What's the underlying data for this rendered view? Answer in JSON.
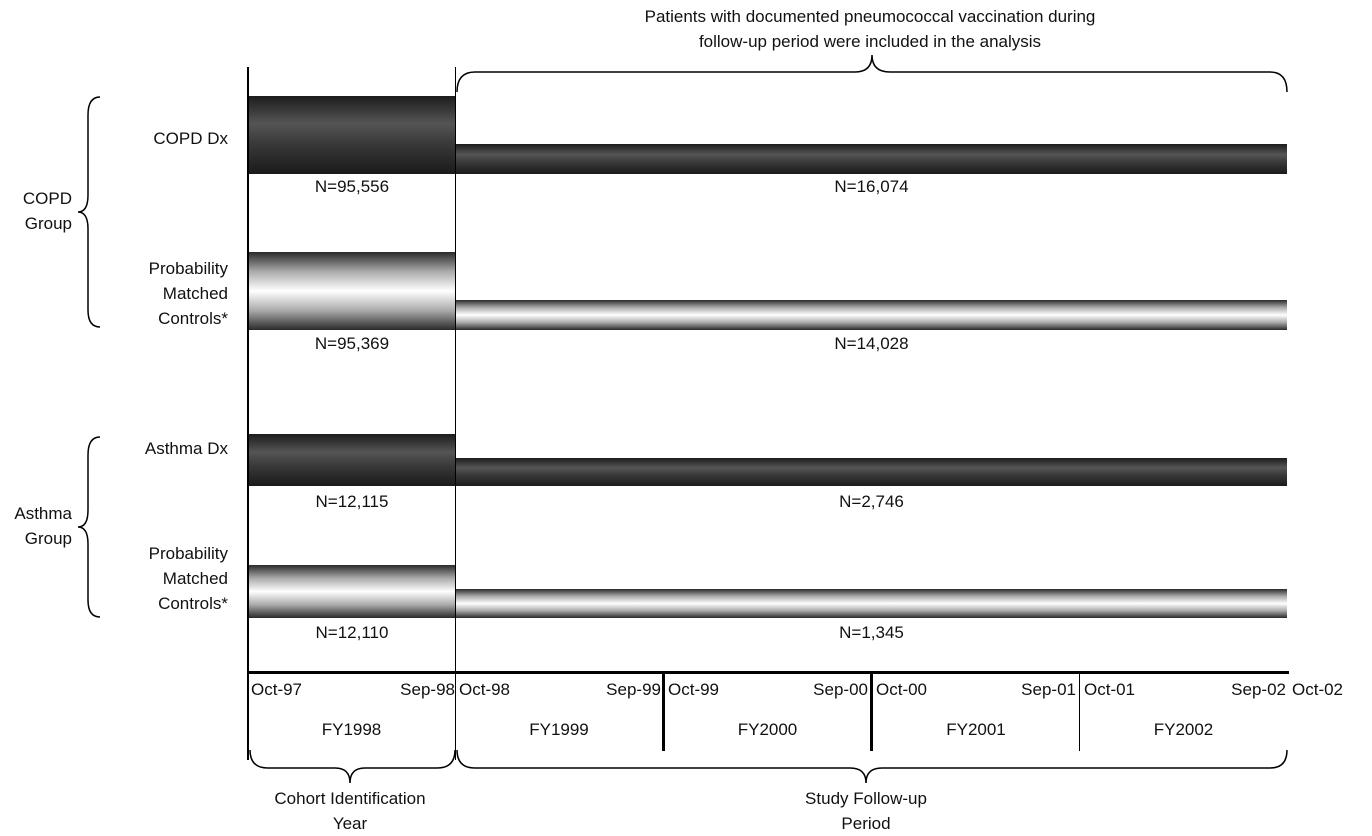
{
  "header_note": {
    "line1": "Patients with documented pneumococcal vaccination during",
    "line2": "follow-up period were included in the analysis"
  },
  "groups": {
    "copd": {
      "line1": "COPD",
      "line2": "Group"
    },
    "asthma": {
      "line1": "Asthma",
      "line2": "Group"
    }
  },
  "rows": [
    {
      "label": "COPD Dx",
      "style": "dark",
      "n_identification": "N=95,556",
      "n_followup": "N=16,074"
    },
    {
      "label_lines": [
        "Probability",
        "Matched",
        "Controls*"
      ],
      "style": "light",
      "n_identification": "N=95,369",
      "n_followup": "N=14,028"
    },
    {
      "label": "Asthma Dx",
      "style": "dark",
      "n_identification": "N=12,115",
      "n_followup": "N=2,746"
    },
    {
      "label_lines": [
        "Probability",
        "Matched",
        "Controls*"
      ],
      "style": "light",
      "n_identification": "N=12,110",
      "n_followup": "N=1,345"
    }
  ],
  "timeline": {
    "periods": [
      {
        "start": "Oct-97",
        "end": "Sep-98",
        "fy": "FY1998"
      },
      {
        "start": "Oct-98",
        "end": "Sep-99",
        "fy": "FY1999"
      },
      {
        "start": "Oct-99",
        "end": "Sep-00",
        "fy": "FY2000"
      },
      {
        "start": "Oct-00",
        "end": "Sep-01",
        "fy": "FY2001"
      },
      {
        "start": "Oct-01",
        "end": "Sep-02",
        "fy": "FY2002"
      }
    ],
    "final_label": "Oct-02"
  },
  "footer": {
    "cohort": {
      "line1": "Cohort Identification",
      "line2": "Year"
    },
    "followup": {
      "line1": "Study Follow-up",
      "line2": "Period"
    }
  }
}
